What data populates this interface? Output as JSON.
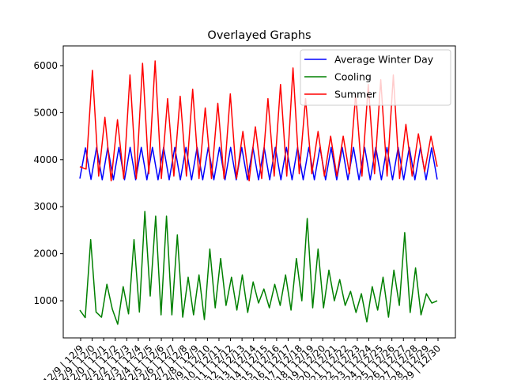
{
  "chart_data": {
    "type": "line",
    "title": "Overlayed Graphs",
    "xlabel": "",
    "ylabel": "",
    "ylim": [
      210,
      6420
    ],
    "yticks": [
      1000,
      2000,
      3000,
      4000,
      5000,
      6000
    ],
    "legend_position": "top-right",
    "x_tick_labels": [
      "12/9 | 12/9",
      "12/9 | 12/0",
      "12/0 | 12/1",
      "12/1 | 12/2",
      "12/2 | 12/3",
      "12/3 | 12/4",
      "12/4 | 12/5",
      "12/5 | 12/6",
      "12/6 | 12/7",
      "12/7 | 12/8",
      "12/8 | 12/9",
      "12/9 | 12/10",
      "12/10 | 12/11",
      "12/11 | 12/12",
      "12/12 | 12/13",
      "12/13 | 12/14",
      "12/14 | 12/15",
      "12/15 | 12/16",
      "12/16 | 12/17",
      "12/17 | 12/18",
      "12/18 | 12/19",
      "12/19 | 12/20",
      "12/20 | 12/21",
      "12/21 | 12/22",
      "12/22 | 12/23",
      "12/23 | 12/24",
      "12/24 | 12/25",
      "12/25 | 12/26",
      "12/26 | 12/27",
      "12/27 | 12/28",
      "12/28 | 12/29",
      "12/29 | 12/30"
    ],
    "series": [
      {
        "name": "Average Winter Day",
        "color": "#0000ff",
        "values": [
          3600,
          4250,
          3580,
          4260,
          3570,
          4260,
          3570,
          4260,
          3570,
          4260,
          3570,
          4260,
          3570,
          4260,
          3570,
          4260,
          3570,
          4260,
          3570,
          4260,
          3570,
          4260,
          3570,
          4260,
          3570,
          4260,
          3570,
          4260,
          3570,
          4260,
          3570,
          4260,
          3570,
          4260,
          3570,
          4260,
          3570,
          4260,
          3570,
          4260,
          3570,
          4260,
          3570,
          4260,
          3570,
          4260,
          3570,
          4260,
          3570,
          4260,
          3570,
          4260,
          3570,
          4260,
          3570,
          4260,
          3570,
          4260,
          3570,
          4260,
          3570,
          4260,
          3570,
          4250,
          3580
        ]
      },
      {
        "name": "Cooling",
        "color": "#008000",
        "values": [
          800,
          640,
          2300,
          760,
          650,
          1350,
          820,
          500,
          1300,
          720,
          2300,
          760,
          2900,
          1100,
          2800,
          700,
          2800,
          700,
          2400,
          650,
          1500,
          700,
          1550,
          600,
          2100,
          850,
          1900,
          900,
          1500,
          800,
          1550,
          750,
          1400,
          950,
          1250,
          850,
          1350,
          900,
          1550,
          800,
          1900,
          1000,
          2750,
          850,
          2100,
          850,
          1650,
          1000,
          1450,
          900,
          1200,
          750,
          1150,
          550,
          1300,
          800,
          1500,
          650,
          1650,
          900,
          2450,
          750,
          1700,
          700,
          1150,
          950,
          1000
        ]
      },
      {
        "name": "Summer",
        "color": "#ff0000",
        "values": [
          3850,
          3800,
          5900,
          3650,
          4900,
          3550,
          4850,
          3600,
          5800,
          3600,
          6050,
          3700,
          6100,
          3600,
          5300,
          3650,
          5350,
          3650,
          5500,
          3600,
          5100,
          3600,
          5200,
          3600,
          5400,
          3600,
          4600,
          3550,
          4700,
          3600,
          5300,
          3650,
          5600,
          3650,
          5950,
          3700,
          5300,
          3700,
          4600,
          3650,
          4500,
          3650,
          4500,
          3700,
          5400,
          3650,
          5600,
          3700,
          5700,
          3650,
          5800,
          3600,
          4750,
          3650,
          4550,
          3750,
          4500,
          3850
        ]
      }
    ]
  }
}
